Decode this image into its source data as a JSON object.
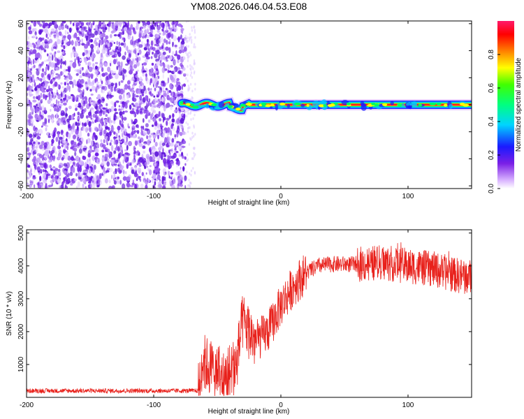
{
  "title": "YM08.2026.046.04.53.E08",
  "colors": {
    "frame": "#000000",
    "snr_line": "#e8201a",
    "scatter": "#6a18e6"
  },
  "chart_data": [
    {
      "type": "heatmap",
      "name": "spectrogram",
      "xlabel": "Height of straight line (km)",
      "ylabel": "Frequency (Hz)",
      "xlim": [
        -200,
        150
      ],
      "ylim": [
        -62,
        62
      ],
      "x_ticks": [
        -200,
        -100,
        0,
        100
      ],
      "x_tick_labels": [
        "-200",
        "-100",
        "0",
        "100"
      ],
      "y_ticks": [
        60,
        40,
        20,
        0,
        -20,
        -40,
        -60
      ],
      "y_tick_labels": [
        "60",
        "40",
        "20",
        "0",
        "-20",
        "-40",
        "-60"
      ],
      "noise_region_x": [
        -200,
        -75
      ],
      "signal_band_x": [
        -78,
        150
      ],
      "signal_band_center_hz": 0,
      "signal_band_halfwidth_hz": 3,
      "colorbar": {
        "label": "Normalized spectral amplitude",
        "range": [
          0,
          1
        ],
        "ticks": [
          0.0,
          0.2,
          0.4,
          0.6,
          0.8
        ],
        "tick_labels": [
          "0.0",
          "0.2",
          "0.4",
          "0.6",
          "0.8"
        ]
      }
    },
    {
      "type": "line",
      "name": "snr",
      "xlabel": "Height of straight line (km)",
      "ylabel": "SNR (10 * v/v)",
      "xlim": [
        -200,
        150
      ],
      "ylim": [
        0,
        5100
      ],
      "x_ticks": [
        -200,
        -100,
        0,
        100
      ],
      "x_tick_labels": [
        "-200",
        "-100",
        "0",
        "100"
      ],
      "y_ticks": [
        1000,
        2000,
        3000,
        4000,
        5000
      ],
      "y_tick_labels": [
        "1000",
        "2000",
        "3000",
        "4000",
        "5000"
      ],
      "trend": {
        "x": [
          -200,
          -65,
          -62,
          -55,
          -45,
          -35,
          -30,
          -25,
          -20,
          -10,
          0,
          10,
          20,
          30,
          40,
          60,
          80,
          100,
          120,
          140,
          150
        ],
        "y": [
          200,
          200,
          1100,
          900,
          600,
          1000,
          2300,
          2000,
          1700,
          2000,
          2800,
          3400,
          3800,
          4000,
          4050,
          4050,
          4100,
          4000,
          3900,
          3700,
          3650
        ]
      }
    }
  ]
}
